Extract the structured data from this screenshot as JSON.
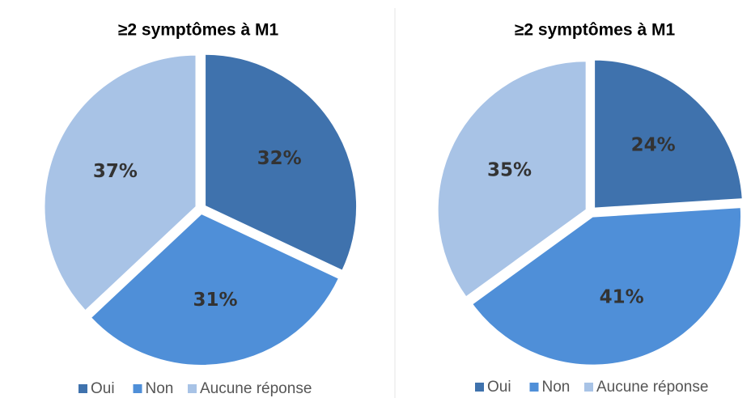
{
  "chart_data": [
    {
      "type": "pie",
      "title": "≥2 symptômes à M1",
      "categories": [
        "Oui",
        "Non",
        "Aucune réponse"
      ],
      "values": [
        32,
        31,
        37
      ],
      "value_labels": [
        "32%",
        "31%",
        "37%"
      ],
      "colors": [
        "#3f72ad",
        "#4f8fd8",
        "#a8c3e6"
      ]
    },
    {
      "type": "pie",
      "title": "≥2 symptômes à M1",
      "categories": [
        "Oui",
        "Non",
        "Aucune réponse"
      ],
      "values": [
        24,
        41,
        35
      ],
      "value_labels": [
        "24%",
        "41%",
        "35%"
      ],
      "colors": [
        "#3f72ad",
        "#4f8fd8",
        "#a8c3e6"
      ]
    }
  ]
}
